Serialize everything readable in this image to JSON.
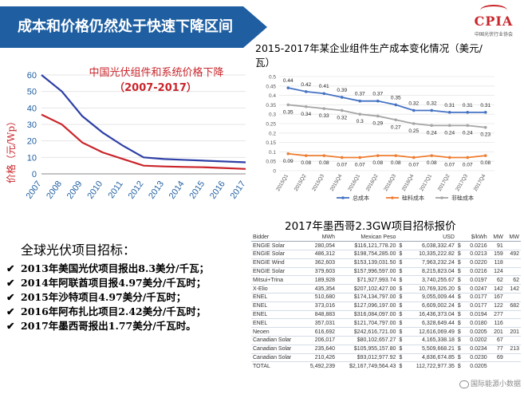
{
  "header": {
    "title": "成本和价格仍然处于快速下降区间"
  },
  "logo": {
    "name": "CPIA",
    "subtitle": "中国光伏行业协会"
  },
  "chart_price": {
    "title": "中国光伏组件和系统价格下降",
    "subtitle": "（2007-2017）"
  },
  "chart_cost": {
    "title": "2015-2017年某企业组件生产成本变化情况（美元/瓦）"
  },
  "chart_data": [
    {
      "type": "line",
      "title": "中国光伏组件和系统价格下降",
      "subtitle": "（2007-2017）",
      "ylabel": "价格（元/Wp）",
      "xlabel": "",
      "x": [
        "2007",
        "2008",
        "2009",
        "2010",
        "2011",
        "2012",
        "2013",
        "2014",
        "2015",
        "2016",
        "2017"
      ],
      "ylim": [
        0,
        60
      ],
      "yticks": [
        "0",
        "10",
        "20",
        "30",
        "40",
        "50",
        "60"
      ],
      "series": [
        {
          "values": [
            60,
            50,
            35,
            25,
            17,
            10,
            9,
            8.5,
            8,
            7.5,
            7
          ],
          "color": "#2e3fa6"
        },
        {
          "values": [
            36,
            30,
            19,
            13,
            9,
            5,
            4.5,
            4.2,
            4,
            3.5,
            3
          ],
          "color": "#c9252b"
        }
      ]
    },
    {
      "type": "line",
      "title": "2015-2017年某企业组件生产成本变化情况（美元/瓦）",
      "x": [
        "2015Q1",
        "2015Q2",
        "2015Q3",
        "2015Q4",
        "2016Q1",
        "2016Q2",
        "2016Q3",
        "2016Q4",
        "2017Q1",
        "2017Q2",
        "2017Q3",
        "2017Q4"
      ],
      "ylim": [
        0,
        0.5
      ],
      "yticks": [
        "0",
        "0.05",
        "0.1",
        "0.15",
        "0.2",
        "0.25",
        "0.3",
        "0.35",
        "0.4",
        "0.45",
        "0.5"
      ],
      "series": [
        {
          "name": "总成本",
          "color": "#4472c4",
          "values": [
            0.44,
            0.42,
            0.41,
            0.39,
            0.37,
            0.37,
            0.35,
            0.32,
            0.32,
            0.31,
            0.31,
            0.31
          ],
          "labels": [
            "0.44",
            "0.42",
            "0.41",
            "0.39",
            "0.37",
            "0.37",
            "0.35",
            "0.32",
            "0.32",
            "0.31",
            "0.31",
            "0.31"
          ]
        },
        {
          "name": "硅料成本",
          "color": "#ed7d31",
          "values": [
            0.09,
            0.08,
            0.08,
            0.07,
            0.07,
            0.08,
            0.08,
            0.07,
            0.08,
            0.07,
            0.07,
            0.08
          ],
          "labels": [
            "0.09",
            "0.08",
            "0.08",
            "0.07",
            "0.07",
            "0.08",
            "0.08",
            "0.07",
            "0.08",
            "0.07",
            "0.07",
            "0.08"
          ]
        },
        {
          "name": "非硅成本",
          "color": "#a5a5a5",
          "values": [
            0.35,
            0.34,
            0.33,
            0.32,
            0.3,
            0.29,
            0.27,
            0.25,
            0.24,
            0.24,
            0.24,
            0.23
          ],
          "labels": [
            "0.35",
            "0.34",
            "0.33",
            "0.32",
            "0.3",
            "0.29",
            "0.27",
            "0.25",
            "0.24",
            "0.24",
            "0.24",
            "0.23"
          ]
        }
      ]
    }
  ],
  "bid_table": {
    "title": "2017年墨西哥2.3GW项目招标报价",
    "headers": [
      "Bidder",
      "MWh",
      "Mexican Peso",
      "USD",
      "$/kWh",
      "MW",
      "MW"
    ],
    "rows": [
      [
        "ENGIE Solar",
        "280,054",
        "$116,121,778.20",
        "$",
        "6,038,332.47",
        "$",
        "0.0216",
        "91",
        ""
      ],
      [
        "ENGIE Solar",
        "486,312",
        "$198,754,285.00",
        "$",
        "10,335,222.82",
        "$",
        "0.0213",
        "159",
        "492"
      ],
      [
        "ENGIE Wind",
        "362,603",
        "$153,139,031.50",
        "$",
        "7,963,232.24",
        "$",
        "0.0220",
        "118",
        ""
      ],
      [
        "ENGIE Solar",
        "379,603",
        "$157,996,597.00",
        "$",
        "8,215,823.04",
        "$",
        "0.0216",
        "124",
        ""
      ],
      [
        "Mitsui+Trina",
        "189,928",
        "$71,927,993.74",
        "$",
        "3,740,255.67",
        "$",
        "0.0197",
        "62",
        "62"
      ],
      [
        "X-Elio",
        "435,354",
        "$207,102,427.00",
        "$",
        "10,769,326.20",
        "$",
        "0.0247",
        "142",
        "142"
      ],
      [
        "ENEL",
        "510,680",
        "$174,134,797.00",
        "$",
        "9,055,009.44",
        "$",
        "0.0177",
        "167",
        ""
      ],
      [
        "ENEL",
        "373,016",
        "$127,096,197.00",
        "$",
        "6,609,002.24",
        "$",
        "0.0177",
        "122",
        "682"
      ],
      [
        "ENEL",
        "848,883",
        "$316,084,097.00",
        "$",
        "16,436,373.04",
        "$",
        "0.0194",
        "277",
        ""
      ],
      [
        "ENEL",
        "357,031",
        "$121,704,797.00",
        "$",
        "6,328,649.44",
        "$",
        "0.0180",
        "116",
        ""
      ],
      [
        "Neoen",
        "616,692",
        "$242,616,721.00",
        "$",
        "12,616,069.49",
        "$",
        "0.0205",
        "201",
        "201"
      ],
      [
        "Canadian Solar",
        "206,017",
        "$80,102,657.27",
        "$",
        "4,165,338.18",
        "$",
        "0.0202",
        "67",
        ""
      ],
      [
        "Canadian Solar",
        "235,640",
        "$105,955,157.80",
        "$",
        "5,509,668.21",
        "$",
        "0.0234",
        "77",
        "213"
      ],
      [
        "Canadian Solar",
        "210,426",
        "$93,012,977.92",
        "$",
        "4,836,674.85",
        "$",
        "0.0230",
        "69",
        ""
      ]
    ],
    "total": [
      "TOTAL",
      "5,492,239",
      "$2,167,749,564.43",
      "$",
      "112,722,977.35",
      "$",
      "0.0205",
      "",
      ""
    ]
  },
  "projects": {
    "heading": "全球光伏项目招标：",
    "check_glyph": "✔",
    "items": [
      "2013年美国光伏项目报出8.3美分/千瓦；",
      "2014年阿联酋项目报4.97美分/千瓦时；",
      "2015年沙特项目4.97美分/千瓦时；",
      "2016年阿布扎比项目2.42美分/千瓦时；",
      "2017年墨西哥报出1.77美分/千瓦时。"
    ]
  },
  "watermark": {
    "text": "国际能源小数据"
  }
}
